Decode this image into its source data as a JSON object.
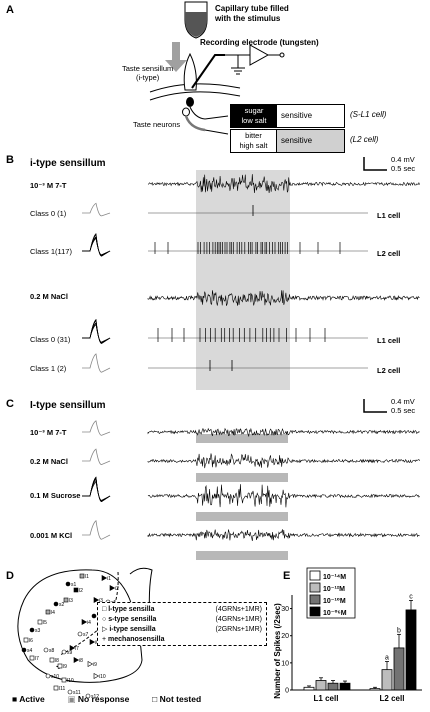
{
  "panelA": {
    "letter": "A",
    "capillary_label_line1": "Capillary tube filled",
    "capillary_label_line2": "with the stimulus",
    "electrode_label": "Recording electrode (tungsten)",
    "sensillum_label_line1": "Taste sensillum",
    "sensillum_label_line2": "(i-type)",
    "neurons_label": "Taste neurons",
    "box1_line1": "sugar",
    "box1_line2": "low salt",
    "box1_sensitive": "sensitive",
    "box1_cell": "(S-L1 cell)",
    "box2_line1": "bitter",
    "box2_line2": "high salt",
    "box2_sensitive": "sensitive",
    "box2_cell": "(L2 cell)"
  },
  "panelB": {
    "letter": "B",
    "title": "i-type sensillum",
    "scale_v": "0.4 mV",
    "scale_t": "0.5 sec",
    "rows": [
      {
        "label": "10⁻³ M 7-T",
        "bold": true
      },
      {
        "label": "Class 0   (1)",
        "bold": false,
        "cell": "L1 cell"
      },
      {
        "label": "Class 1(117)",
        "bold": false,
        "cell": "L2 cell"
      },
      {
        "label": "0.2 M NaCl",
        "bold": true
      },
      {
        "label": "Class 0 (31)",
        "bold": false,
        "cell": "L1 cell"
      },
      {
        "label": "Class 1   (2)",
        "bold": false,
        "cell": "L2 cell"
      }
    ]
  },
  "panelC": {
    "letter": "C",
    "title": "I-type sensillum",
    "scale_v": "0.4 mV",
    "scale_t": "0.5 sec",
    "rows": [
      {
        "label": "10⁻³ M 7-T"
      },
      {
        "label": "0.2 M NaCl"
      },
      {
        "label": "0.1 M Sucrose"
      },
      {
        "label": "0.001 M KCl"
      }
    ]
  },
  "panelD": {
    "letter": "D",
    "legend": [
      {
        "symbol": "□",
        "name": "l-type sensilla",
        "detail": "(4GRNs+1MR)"
      },
      {
        "symbol": "○",
        "name": "s-type sensilla",
        "detail": "(4GRNs+1MR)"
      },
      {
        "symbol": "▷",
        "name": "i-type sensilla",
        "detail": "(2GRNs+1MR)"
      },
      {
        "symbol": "+",
        "name": "mechanosensilla",
        "detail": ""
      }
    ],
    "sensilla_labels": [
      "l1",
      "s1",
      "l2",
      "l3",
      "s2",
      "l4",
      "l5",
      "s3",
      "l6",
      "s4",
      "l7",
      "i1",
      "i2",
      "i3",
      "s5",
      "s6",
      "i4",
      "i5",
      "s7",
      "i6",
      "s8",
      "l8",
      "s9",
      "i7",
      "l9",
      "i8",
      "s10",
      "i9",
      "l10",
      "l11",
      "s11",
      "s12",
      "i10"
    ],
    "key": [
      {
        "symbol": "■",
        "label": "Active"
      },
      {
        "symbol": "▣",
        "label": "No response"
      },
      {
        "symbol": "□",
        "label": "Not tested"
      }
    ]
  },
  "panelE": {
    "letter": "E",
    "ylabel": "Number of Spikes (/2sec)",
    "legend": [
      "10⁻¹⁴M",
      "10⁻¹²M",
      "10⁻¹⁰M",
      "10⁻⁰⁶M"
    ],
    "letters": [
      "a",
      "b",
      "c"
    ],
    "chart_data": {
      "type": "bar",
      "categories": [
        "L1 cell",
        "L2 cell"
      ],
      "ylim": [
        0,
        35
      ],
      "yticks": [
        0,
        10,
        20,
        30
      ],
      "series": [
        {
          "name": "10⁻¹⁴M",
          "values": [
            1,
            0.5
          ],
          "err": [
            0.5,
            0.5
          ],
          "color": "#ffffff"
        },
        {
          "name": "10⁻¹²M",
          "values": [
            3.5,
            7.5
          ],
          "err": [
            1.0,
            3.0
          ],
          "color": "#bdbdbd"
        },
        {
          "name": "10⁻¹⁰M",
          "values": [
            2.5,
            15.5
          ],
          "err": [
            1.0,
            5.0
          ],
          "color": "#737373"
        },
        {
          "name": "10⁻⁰⁶M",
          "values": [
            2.5,
            29.5
          ],
          "err": [
            0.8,
            3.5
          ],
          "color": "#000000"
        }
      ]
    }
  }
}
